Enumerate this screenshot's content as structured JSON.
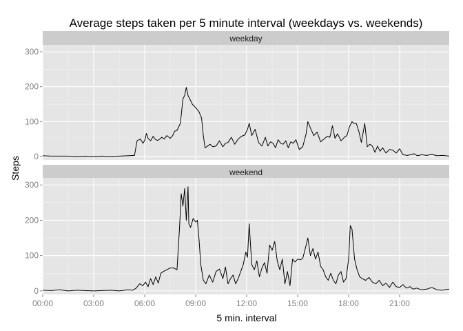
{
  "chart_data": {
    "type": "line",
    "title": "Average steps taken per 5 minute interval (weekdays vs. weekends)",
    "xlabel": "5 min. interval",
    "ylabel": "Steps",
    "xlim_hours": [
      0,
      23.92
    ],
    "ylim": [
      -10,
      320
    ],
    "x_ticks": [
      {
        "hours": 0,
        "label": "00:00"
      },
      {
        "hours": 3,
        "label": "03:00"
      },
      {
        "hours": 6,
        "label": "06:00"
      },
      {
        "hours": 9,
        "label": "09:00"
      },
      {
        "hours": 12,
        "label": "12:00"
      },
      {
        "hours": 15,
        "label": "15:00"
      },
      {
        "hours": 18,
        "label": "18:00"
      },
      {
        "hours": 21,
        "label": "21:00"
      }
    ],
    "y_ticks": [
      {
        "value": 0,
        "label": "0"
      },
      {
        "value": 100,
        "label": "100"
      },
      {
        "value": 200,
        "label": "200"
      },
      {
        "value": 300,
        "label": "300"
      }
    ],
    "panels": [
      {
        "name": "weekday",
        "color": "#000000",
        "x_hours": [
          0,
          0.5,
          1,
          1.5,
          2,
          2.5,
          3,
          3.5,
          4,
          4.5,
          5,
          5.4,
          5.55,
          5.75,
          5.9,
          6.0,
          6.1,
          6.2,
          6.35,
          6.5,
          6.6,
          6.75,
          6.9,
          7.0,
          7.15,
          7.3,
          7.5,
          7.65,
          7.75,
          7.9,
          8.1,
          8.25,
          8.35,
          8.45,
          8.55,
          8.65,
          8.8,
          9.0,
          9.2,
          9.35,
          9.45,
          9.55,
          9.7,
          9.85,
          10.0,
          10.2,
          10.4,
          10.6,
          10.75,
          10.9,
          11.1,
          11.3,
          11.5,
          11.7,
          11.9,
          12.05,
          12.15,
          12.3,
          12.5,
          12.7,
          12.9,
          13.1,
          13.25,
          13.4,
          13.55,
          13.7,
          13.85,
          14.0,
          14.15,
          14.3,
          14.45,
          14.6,
          14.75,
          14.9,
          15.1,
          15.3,
          15.5,
          15.6,
          15.75,
          15.95,
          16.15,
          16.35,
          16.55,
          16.75,
          16.9,
          17.05,
          17.2,
          17.35,
          17.55,
          17.75,
          17.9,
          18.05,
          18.2,
          18.3,
          18.45,
          18.6,
          18.75,
          18.95,
          19.1,
          19.25,
          19.4,
          19.55,
          19.7,
          19.85,
          20.0,
          20.2,
          20.4,
          20.6,
          20.8,
          21.0,
          21.2,
          21.45,
          21.65,
          21.85,
          22.05,
          22.3,
          22.6,
          22.9,
          23.2,
          23.5,
          23.92
        ],
        "y": [
          2,
          1,
          1,
          1,
          0,
          1,
          0,
          1,
          0,
          1,
          2,
          3,
          45,
          50,
          38,
          46,
          66,
          52,
          45,
          58,
          50,
          46,
          50,
          55,
          50,
          60,
          52,
          60,
          72,
          75,
          95,
          165,
          175,
          198,
          175,
          165,
          150,
          140,
          128,
          110,
          60,
          25,
          30,
          35,
          28,
          30,
          45,
          28,
          38,
          40,
          55,
          35,
          50,
          58,
          62,
          78,
          95,
          60,
          78,
          40,
          30,
          55,
          30,
          42,
          38,
          25,
          48,
          38,
          35,
          45,
          25,
          42,
          38,
          48,
          20,
          28,
          65,
          100,
          82,
          60,
          70,
          42,
          50,
          58,
          55,
          88,
          52,
          65,
          45,
          55,
          60,
          85,
          100,
          95,
          95,
          72,
          40,
          95,
          28,
          35,
          30,
          12,
          30,
          15,
          25,
          10,
          20,
          18,
          10,
          22,
          5,
          3,
          5,
          8,
          2,
          5,
          3,
          6,
          2,
          3,
          1
        ],
        "strip_label": "weekday"
      },
      {
        "name": "weekend",
        "color": "#000000",
        "x_hours": [
          0,
          0.5,
          1,
          1.5,
          2,
          2.5,
          3,
          3.5,
          4,
          4.5,
          5,
          5.3,
          5.5,
          5.7,
          5.9,
          6.05,
          6.2,
          6.35,
          6.5,
          6.65,
          6.8,
          6.95,
          7.1,
          7.3,
          7.5,
          7.7,
          7.9,
          8.05,
          8.15,
          8.25,
          8.35,
          8.45,
          8.55,
          8.6,
          8.7,
          8.85,
          9.0,
          9.1,
          9.2,
          9.3,
          9.45,
          9.6,
          9.8,
          10.0,
          10.2,
          10.4,
          10.6,
          10.75,
          10.9,
          11.05,
          11.2,
          11.35,
          11.5,
          11.65,
          11.8,
          11.95,
          12.05,
          12.15,
          12.3,
          12.45,
          12.6,
          12.75,
          12.9,
          13.05,
          13.2,
          13.35,
          13.5,
          13.65,
          13.8,
          13.95,
          14.1,
          14.25,
          14.4,
          14.55,
          14.7,
          14.85,
          15.0,
          15.15,
          15.3,
          15.45,
          15.6,
          15.75,
          15.9,
          16.05,
          16.2,
          16.35,
          16.5,
          16.65,
          16.8,
          16.95,
          17.1,
          17.25,
          17.4,
          17.55,
          17.7,
          17.85,
          18.0,
          18.1,
          18.2,
          18.35,
          18.5,
          18.65,
          18.8,
          19.0,
          19.2,
          19.4,
          19.6,
          19.8,
          20.0,
          20.2,
          20.4,
          20.6,
          20.8,
          21.0,
          21.2,
          21.4,
          21.6,
          21.8,
          22.0,
          22.3,
          22.6,
          22.9,
          23.2,
          23.5,
          23.92
        ],
        "y": [
          2,
          1,
          3,
          0,
          2,
          1,
          0,
          1,
          2,
          0,
          3,
          2,
          8,
          20,
          15,
          25,
          12,
          35,
          18,
          40,
          22,
          50,
          55,
          60,
          65,
          65,
          60,
          180,
          275,
          240,
          290,
          200,
          295,
          190,
          180,
          205,
          195,
          200,
          145,
          75,
          30,
          20,
          45,
          25,
          55,
          62,
          35,
          68,
          20,
          35,
          45,
          20,
          35,
          55,
          75,
          110,
          95,
          190,
          75,
          60,
          85,
          40,
          65,
          80,
          50,
          130,
          115,
          140,
          85,
          60,
          90,
          20,
          55,
          15,
          90,
          82,
          90,
          88,
          92,
          120,
          150,
          100,
          120,
          90,
          110,
          70,
          60,
          40,
          30,
          50,
          30,
          20,
          45,
          55,
          25,
          35,
          90,
          185,
          175,
          90,
          60,
          40,
          35,
          30,
          38,
          25,
          20,
          30,
          15,
          22,
          10,
          25,
          12,
          10,
          18,
          8,
          12,
          5,
          8,
          3,
          5,
          10,
          3,
          2,
          5
        ],
        "strip_label": "weekend"
      }
    ]
  },
  "colors": {
    "panel_bg": "#e5e5e5",
    "grid_major": "#ffffff",
    "grid_minor": "#f2f2f2",
    "strip_bg": "#cccccc",
    "tick_text": "#7f7f7f",
    "line": "#000000"
  }
}
